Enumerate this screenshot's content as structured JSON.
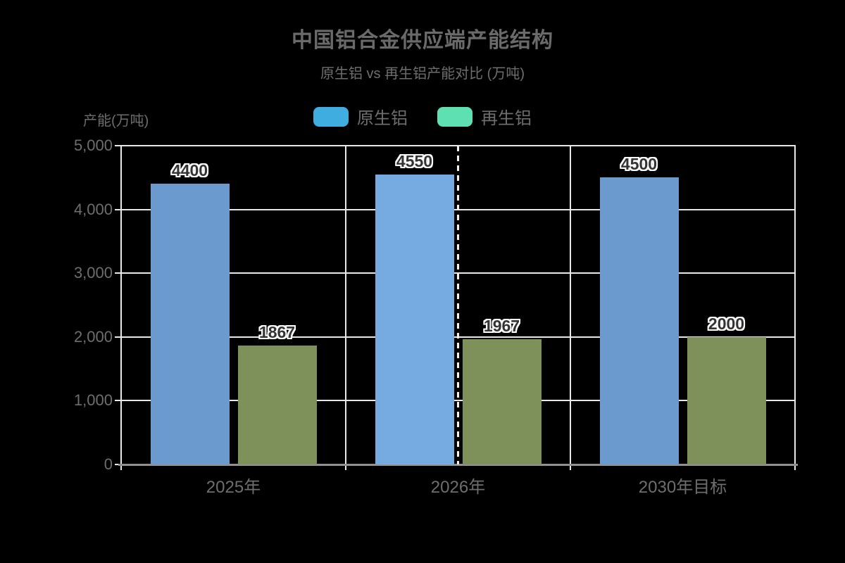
{
  "title": "中国铝合金供应端产能结构",
  "subtitle": "原生铝 vs 再生铝产能对比 (万吨)",
  "y_axis_name": "产能(万吨)",
  "legend": {
    "items": [
      {
        "id": "primary",
        "label": "原生铝",
        "swatch_color": "#3fade0"
      },
      {
        "id": "recycled",
        "label": "再生铝",
        "swatch_color": "#5fe0b2"
      }
    ]
  },
  "colors": {
    "background": "#000000",
    "grid_line": "#e8e8e8",
    "x_axis_line": "#919191",
    "axis_text": "#6e6e6e",
    "title_text": "#6a6a6a",
    "value_label_text": "#333333",
    "value_label_outline": "#ffffff",
    "dashed_marker_line": "#f0f0f0"
  },
  "chart_data": {
    "type": "bar",
    "title": "中国铝合金供应端产能结构",
    "subtitle": "原生铝 vs 再生铝产能对比 (万吨)",
    "categories": [
      "2025年",
      "2026年",
      "2030年目标"
    ],
    "series": [
      {
        "id": "primary",
        "name": "原生铝",
        "values": [
          4400,
          4550,
          4500
        ],
        "color": "#6b9bce",
        "highlight": {
          "index": 1,
          "color": "#76abe2"
        }
      },
      {
        "id": "recycled",
        "name": "再生铝",
        "values": [
          1867,
          1967,
          2000
        ],
        "color": "#7e915a"
      }
    ],
    "value_labels": true,
    "ylabel": "产能(万吨)",
    "ylim": [
      0,
      5000
    ],
    "y_tick_step": 1000,
    "y_tick_labels": [
      "0",
      "1,000",
      "2,000",
      "3,000",
      "4,000",
      "5,000"
    ],
    "grid": true,
    "category_split_lines": true,
    "legend_position": "top",
    "marker_line": {
      "type": "vertical-dashed",
      "category_index": 1
    }
  }
}
